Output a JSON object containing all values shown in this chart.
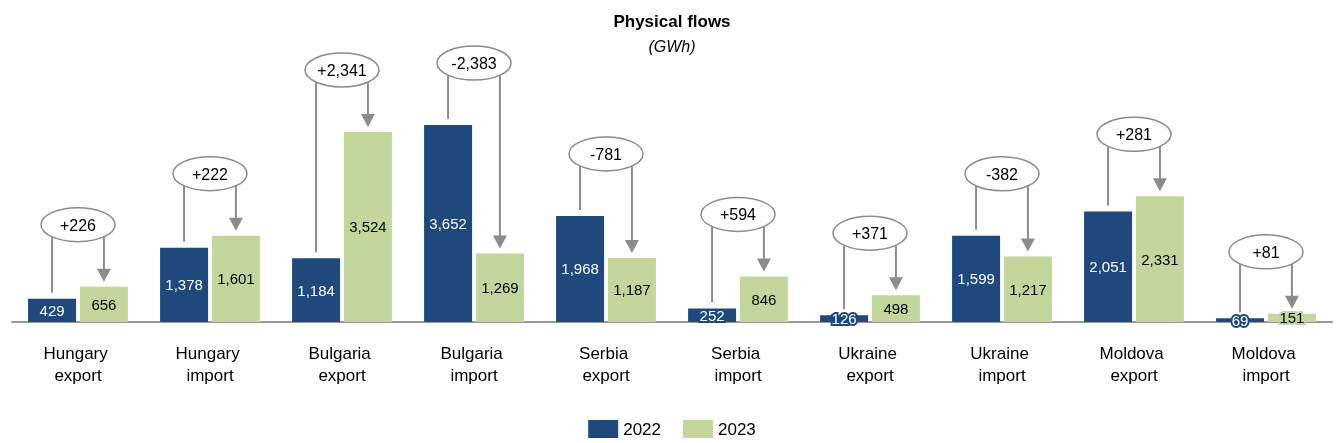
{
  "chart_data": {
    "type": "bar",
    "title": "Physical flows",
    "subtitle": "(GWh)",
    "categories": [
      "Hungary export",
      "Hungary import",
      "Bulgaria export",
      "Bulgaria import",
      "Serbia export",
      "Serbia import",
      "Ukraine export",
      "Ukraine import",
      "Moldova export",
      "Moldova import"
    ],
    "series": [
      {
        "name": "2022",
        "color": "#1f497d",
        "values": [
          429,
          1378,
          1184,
          3652,
          1968,
          252,
          126,
          1599,
          2051,
          69
        ],
        "value_labels": [
          "429",
          "1,378",
          "1,184",
          "3,652",
          "1,968",
          "252",
          "126",
          "1,599",
          "2,051",
          "69"
        ]
      },
      {
        "name": "2023",
        "color": "#c3d69b",
        "values": [
          656,
          1601,
          3524,
          1269,
          1187,
          846,
          498,
          1217,
          2331,
          151
        ],
        "value_labels": [
          "656",
          "1,601",
          "3,524",
          "1,269",
          "1,187",
          "846",
          "498",
          "1,217",
          "2,331",
          "151"
        ]
      }
    ],
    "legend": "bottom",
    "annotations": [
      "+226",
      "+222",
      "+2,341",
      "-2,383",
      "-781",
      "+594",
      "+371",
      "-382",
      "+281",
      "+81"
    ]
  }
}
